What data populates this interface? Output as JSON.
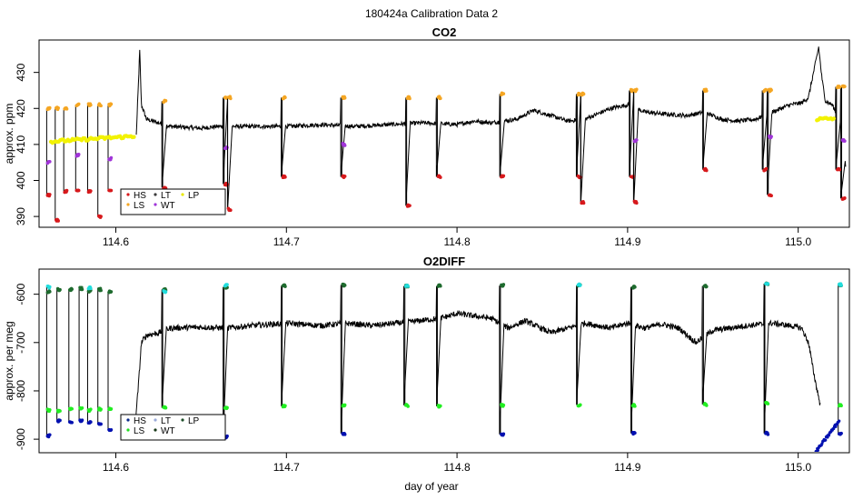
{
  "suptitle": "180424a   Calibration Data 2",
  "xlabel": "day of year",
  "chart_data": [
    {
      "type": "line",
      "title": "CO2",
      "ylabel": "approx. ppm",
      "xlim": [
        114.555,
        115.03
      ],
      "ylim": [
        387,
        439
      ],
      "xticks": [
        114.6,
        114.7,
        114.8,
        114.9,
        115.0
      ],
      "xtick_labels": [
        "114.6",
        "114.7",
        "114.8",
        "114.9",
        "115.0"
      ],
      "yticks": [
        390,
        400,
        410,
        420,
        430
      ],
      "ytick_labels": [
        "390",
        "400",
        "410",
        "420",
        "430"
      ],
      "grid": false,
      "legend": {
        "placement": "bottom-left",
        "entries": [
          {
            "label": "HS",
            "color": "#d7191c"
          },
          {
            "label": "LT",
            "color": "#3b3b3b"
          },
          {
            "label": "LP",
            "color": "#e8e800"
          },
          {
            "label": "LS",
            "color": "#f5a623"
          },
          {
            "label": "WT",
            "color": "#a035d8"
          }
        ]
      },
      "series_colors": {
        "trace": "#000000",
        "HS": "#d7191c",
        "LS": "#f5a623",
        "WT": "#a035d8",
        "LP": "#f2f200"
      },
      "background": [
        [
          114.612,
          412.5
        ],
        [
          114.613,
          424
        ],
        [
          114.614,
          436
        ],
        [
          114.615,
          421
        ],
        [
          114.618,
          417
        ],
        [
          114.625,
          416
        ],
        [
          114.632,
          415
        ],
        [
          114.65,
          414.5
        ],
        [
          114.66,
          415
        ],
        [
          114.68,
          415
        ],
        [
          114.7,
          415
        ],
        [
          114.72,
          415.5
        ],
        [
          114.74,
          415
        ],
        [
          114.76,
          415.5
        ],
        [
          114.78,
          416
        ],
        [
          114.8,
          415.5
        ],
        [
          114.81,
          416.5
        ],
        [
          114.82,
          416
        ],
        [
          114.835,
          417
        ],
        [
          114.845,
          419.5
        ],
        [
          114.855,
          418
        ],
        [
          114.865,
          416.5
        ],
        [
          114.875,
          417
        ],
        [
          114.89,
          420
        ],
        [
          114.9,
          421
        ],
        [
          114.91,
          419
        ],
        [
          114.92,
          418.5
        ],
        [
          114.935,
          418
        ],
        [
          114.945,
          419
        ],
        [
          114.955,
          417
        ],
        [
          114.965,
          416.5
        ],
        [
          114.975,
          417
        ],
        [
          114.985,
          419
        ],
        [
          114.995,
          421
        ],
        [
          115.002,
          421.5
        ],
        [
          115.006,
          423
        ],
        [
          115.009,
          430
        ],
        [
          115.012,
          437
        ],
        [
          115.014,
          428
        ],
        [
          115.016,
          422
        ],
        [
          115.02,
          421
        ],
        [
          115.026,
          415
        ],
        [
          115.028,
          403
        ]
      ],
      "calibration_cycles": [
        {
          "x": 114.56,
          "HS": 396,
          "LS": 420,
          "WT": 405
        },
        {
          "x": 114.565,
          "HS": 389,
          "LS": 420
        },
        {
          "x": 114.57,
          "HS": 397,
          "LS": 420
        },
        {
          "x": 114.577,
          "HS": 397,
          "LS": 421,
          "WT": 407
        },
        {
          "x": 114.584,
          "HS": 397,
          "LS": 421
        },
        {
          "x": 114.59,
          "HS": 390,
          "LS": 421
        },
        {
          "x": 114.596,
          "HS": 397,
          "LS": 421,
          "WT": 406
        },
        {
          "x": 114.628,
          "HS": 398,
          "LS": 422
        },
        {
          "x": 114.664,
          "HS": 399,
          "LS": 423,
          "WT": 409
        },
        {
          "x": 114.666,
          "HS": 392,
          "LS": 423
        },
        {
          "x": 114.698,
          "HS": 401,
          "LS": 423
        },
        {
          "x": 114.733,
          "HS": 401,
          "LS": 423,
          "WT": 410
        },
        {
          "x": 114.771,
          "HS": 393,
          "LS": 423
        },
        {
          "x": 114.789,
          "HS": 401,
          "LS": 423
        },
        {
          "x": 114.826,
          "HS": 401,
          "LS": 424
        },
        {
          "x": 114.871,
          "HS": 401,
          "LS": 424
        },
        {
          "x": 114.873,
          "HS": 394,
          "LS": 424
        },
        {
          "x": 114.902,
          "HS": 401,
          "LS": 425
        },
        {
          "x": 114.904,
          "HS": 394,
          "LS": 425,
          "WT": 411
        },
        {
          "x": 114.945,
          "HS": 403,
          "LS": 425
        },
        {
          "x": 114.98,
          "HS": 403,
          "LS": 425
        },
        {
          "x": 114.983,
          "HS": 396,
          "LS": 425,
          "WT": 412
        },
        {
          "x": 115.023,
          "HS": 403,
          "LS": 426
        },
        {
          "x": 115.026,
          "HS": 395,
          "LS": 426,
          "WT": 411
        }
      ],
      "LP_segments": [
        {
          "x0": 114.562,
          "x1": 114.611,
          "y0": 410.8,
          "y1": 412.3
        },
        {
          "x0": 115.011,
          "x1": 115.021,
          "y0": 417.0,
          "y1": 417.2
        }
      ]
    },
    {
      "type": "line",
      "title": "O2DIFF",
      "ylabel": "approx. per meg",
      "xlim": [
        114.555,
        115.03
      ],
      "ylim": [
        -928,
        -548
      ],
      "xticks": [
        114.6,
        114.7,
        114.8,
        114.9,
        115.0
      ],
      "xtick_labels": [
        "114.6",
        "114.7",
        "114.8",
        "114.9",
        "115.0"
      ],
      "yticks": [
        -900,
        -800,
        -700,
        -600
      ],
      "ytick_labels": [
        "-900",
        "-800",
        "-700",
        "-600"
      ],
      "grid": false,
      "legend": {
        "placement": "bottom-left",
        "entries": [
          {
            "label": "HS",
            "color": "#0a2a8a"
          },
          {
            "label": "LT",
            "color": "#9aaad8"
          },
          {
            "label": "LP",
            "color": "#1f4f2a"
          },
          {
            "label": "LS",
            "color": "#22dd22"
          },
          {
            "label": "WT",
            "color": "#1a3a1a"
          }
        ]
      },
      "series_colors": {
        "trace": "#000000",
        "HS": "#0010b0",
        "LS": "#22ee22",
        "WT": "#1e6b2e",
        "LT": "#22dddd",
        "LP": "#1f4f2a"
      },
      "background": [
        [
          114.611,
          -880
        ],
        [
          114.613,
          -800
        ],
        [
          114.615,
          -700
        ],
        [
          114.618,
          -685
        ],
        [
          114.625,
          -680
        ],
        [
          114.632,
          -670
        ],
        [
          114.65,
          -668
        ],
        [
          114.665,
          -670
        ],
        [
          114.68,
          -665
        ],
        [
          114.7,
          -660
        ],
        [
          114.72,
          -665
        ],
        [
          114.735,
          -660
        ],
        [
          114.75,
          -665
        ],
        [
          114.77,
          -658
        ],
        [
          114.79,
          -650
        ],
        [
          114.8,
          -640
        ],
        [
          114.81,
          -645
        ],
        [
          114.82,
          -650
        ],
        [
          114.83,
          -670
        ],
        [
          114.84,
          -655
        ],
        [
          114.855,
          -680
        ],
        [
          114.865,
          -670
        ],
        [
          114.875,
          -660
        ],
        [
          114.89,
          -670
        ],
        [
          114.9,
          -660
        ],
        [
          114.91,
          -670
        ],
        [
          114.92,
          -662
        ],
        [
          114.93,
          -670
        ],
        [
          114.94,
          -700
        ],
        [
          114.95,
          -675
        ],
        [
          114.96,
          -670
        ],
        [
          114.97,
          -665
        ],
        [
          114.985,
          -660
        ],
        [
          114.995,
          -665
        ],
        [
          115.002,
          -670
        ],
        [
          115.006,
          -700
        ],
        [
          115.01,
          -780
        ],
        [
          115.013,
          -830
        ]
      ],
      "calibration_cycles": [
        {
          "x": 114.56,
          "HS": -893,
          "LS": -840,
          "WT": -595,
          "LT": -585
        },
        {
          "x": 114.566,
          "HS": -862,
          "LS": -842,
          "WT": -590
        },
        {
          "x": 114.573,
          "HS": -864,
          "LS": -838,
          "WT": -590
        },
        {
          "x": 114.579,
          "HS": -862,
          "LS": -835,
          "WT": -588
        },
        {
          "x": 114.584,
          "HS": -866,
          "LS": -840,
          "WT": -593,
          "LT": -587
        },
        {
          "x": 114.59,
          "HS": -870,
          "LS": -838,
          "WT": -590
        },
        {
          "x": 114.596,
          "HS": -880,
          "LS": -836,
          "WT": -595
        },
        {
          "x": 114.628,
          "LS": -835,
          "WT": -590,
          "LT": -595
        },
        {
          "x": 114.664,
          "HS": -895,
          "LS": -836,
          "WT": -585,
          "LT": -582
        },
        {
          "x": 114.698,
          "LS": -832,
          "WT": -582
        },
        {
          "x": 114.733,
          "HS": -888,
          "LS": -830,
          "WT": -581
        },
        {
          "x": 114.77,
          "LS": -830,
          "WT": -583,
          "LT": -582
        },
        {
          "x": 114.789,
          "LS": -832,
          "WT": -583
        },
        {
          "x": 114.826,
          "HS": -890,
          "LS": -830,
          "WT": -582
        },
        {
          "x": 114.871,
          "LS": -829,
          "WT": -582,
          "LT": -580
        },
        {
          "x": 114.903,
          "HS": -888,
          "LS": -830,
          "WT": -585
        },
        {
          "x": 114.945,
          "LS": -828,
          "WT": -583
        },
        {
          "x": 114.981,
          "HS": -888,
          "LS": -825,
          "WT": -578,
          "LT": -578
        },
        {
          "x": 115.024,
          "HS": -888,
          "LS": -830,
          "WT": -582,
          "LT": -580
        }
      ],
      "HS_ramp": {
        "x0": 115.01,
        "x1": 115.024,
        "y0": -928,
        "y1": -862
      }
    }
  ]
}
